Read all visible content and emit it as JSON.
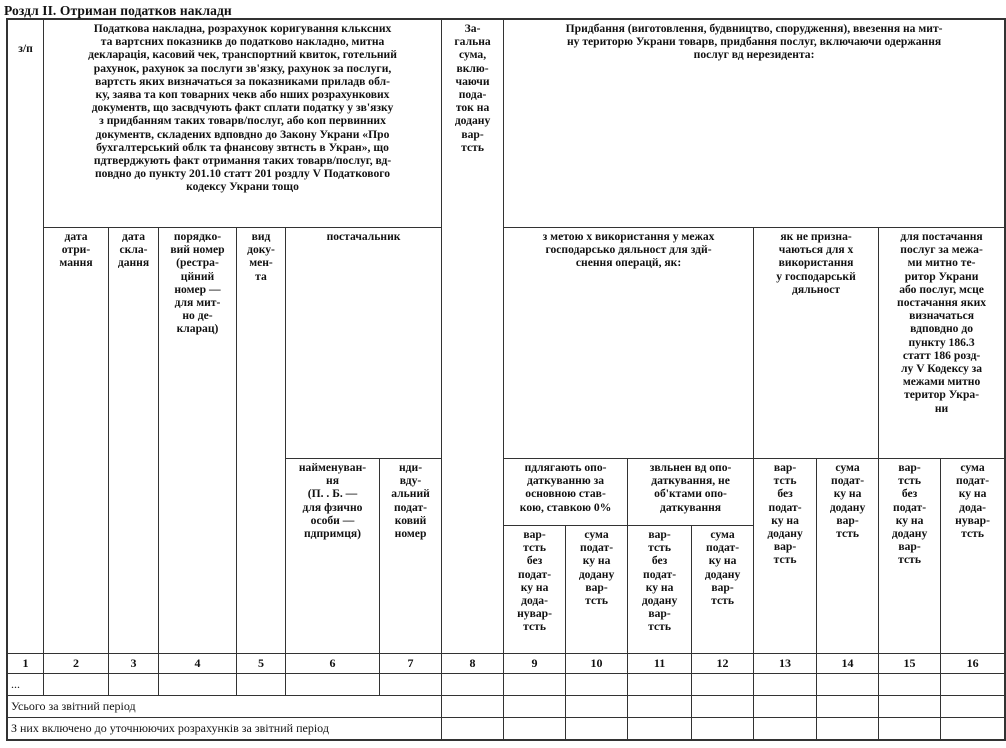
{
  "section_title": "Роздл II. Отриман податков накладн",
  "headers": {
    "col1": "з/п",
    "document_group": "Податкова накладна, розрахунок коригування кльксних\nта вартсних показникв до податково накладно, митна\nдекларація, касовий чек, транспортний квиток, готельний\nрахунок, рахунок за послуги зв'язку, рахунок за послуги,\nвартсть яких визначаться за показниками приладв обл-\nку, заява та коп товарних чекв або нших розрахункових\nдокументв, що засвдчують факт сплати податку у зв'язку\nз придбанням таких товарв/послуг, або коп первинних\nдокументв, складених вдповдно до Закону Украни «Про\nбухгалтерський облк та фнансову звтнсть в Укран», що\nпдтверджують факт отримання таких товарв/послуг, вд-\nповдно до пункту 201.10 статт 201 роздлу V Податкового\nкодексу Украни тощо",
    "col8": "За-\nгальна\nсума,\nвклю-\nчаючи\nпода-\nток на\nдодану\nвар-\nтсть",
    "purchase_group": "Придбання (виготовлення, будвництво, спорудження), ввезення на мит-\nну територю Украни товарв, придбання послуг, включаючи одержання\nпослуг вд нерезидента:",
    "col2": "дата\nотри-\nмання",
    "col3": "дата\nскла-\nдання",
    "col4": "порядко-\nвий номер\n(рестра-\nцйний\nномер —\nдля мит-\nно де-\nкларац)",
    "col5": "вид\nдоку-\nмен-\nта",
    "supplier": "постачальник",
    "business_use": "з метою х використання у межах\nгосподарсько дяльност для здй-\nснення операцй, як:",
    "non_business": "як не призна-\nчаються для х\nвикористання\nу господарськй\nдяльност",
    "outside_customs": "для постачання\nпослуг за межа-\nми митно те-\nритор Украни\nабо послуг, мсце\nпостачання яких\nвизначаться\nвдповдно до\nпункту 186.3\nстатт 186 розд-\nлу V Кодексу за\nмежами митно\nтеритор Укра-\nни",
    "col6": "найменуван-\nня\n(П. . Б. —\nдля фзично\nособи —\nпдпримця)",
    "col7": "нди-\nвду-\nальний\nподат-\nковий\nномер",
    "taxable": "пдлягають опо-\nдаткуванню за\nосновною став-\nкою, ставкою 0%",
    "exempt": "звльнен вд опо-\nдаткування, не\nоб'ктами опо-\nдаткування",
    "col9": "вар-\nтсть\nбез\nподат-\nку на\nдода-\nнувар-\nтсть",
    "col10": "сума\nподат-\nку на\nдодану\nвар-\nтсть",
    "col11": "вар-\nтсть\nбез\nподат-\nку на\nдодану\nвар-\nтсть",
    "col12": "сума\nподат-\nку на\nдодану\nвар-\nтсть",
    "col13": "вар-\nтсть\nбез\nподат-\nку на\nдодану\nвар-\nтсть",
    "col14": "сума\nподат-\nку на\nдодану\nвар-\nтсть",
    "col15": "вар-\nтсть\nбез\nподат-\nку на\nдодану\nвар-\nтсть",
    "col16": "сума\nподат-\nку на\nдода-\nнувар-\nтсть"
  },
  "column_numbers": [
    "1",
    "2",
    "3",
    "4",
    "5",
    "6",
    "7",
    "8",
    "9",
    "10",
    "11",
    "12",
    "13",
    "14",
    "15",
    "16"
  ],
  "rows": {
    "ellipsis": "...",
    "total_label": "Усього за звітний період",
    "included_label": "З них включено до уточнюючих розрахунків за звітний період"
  }
}
